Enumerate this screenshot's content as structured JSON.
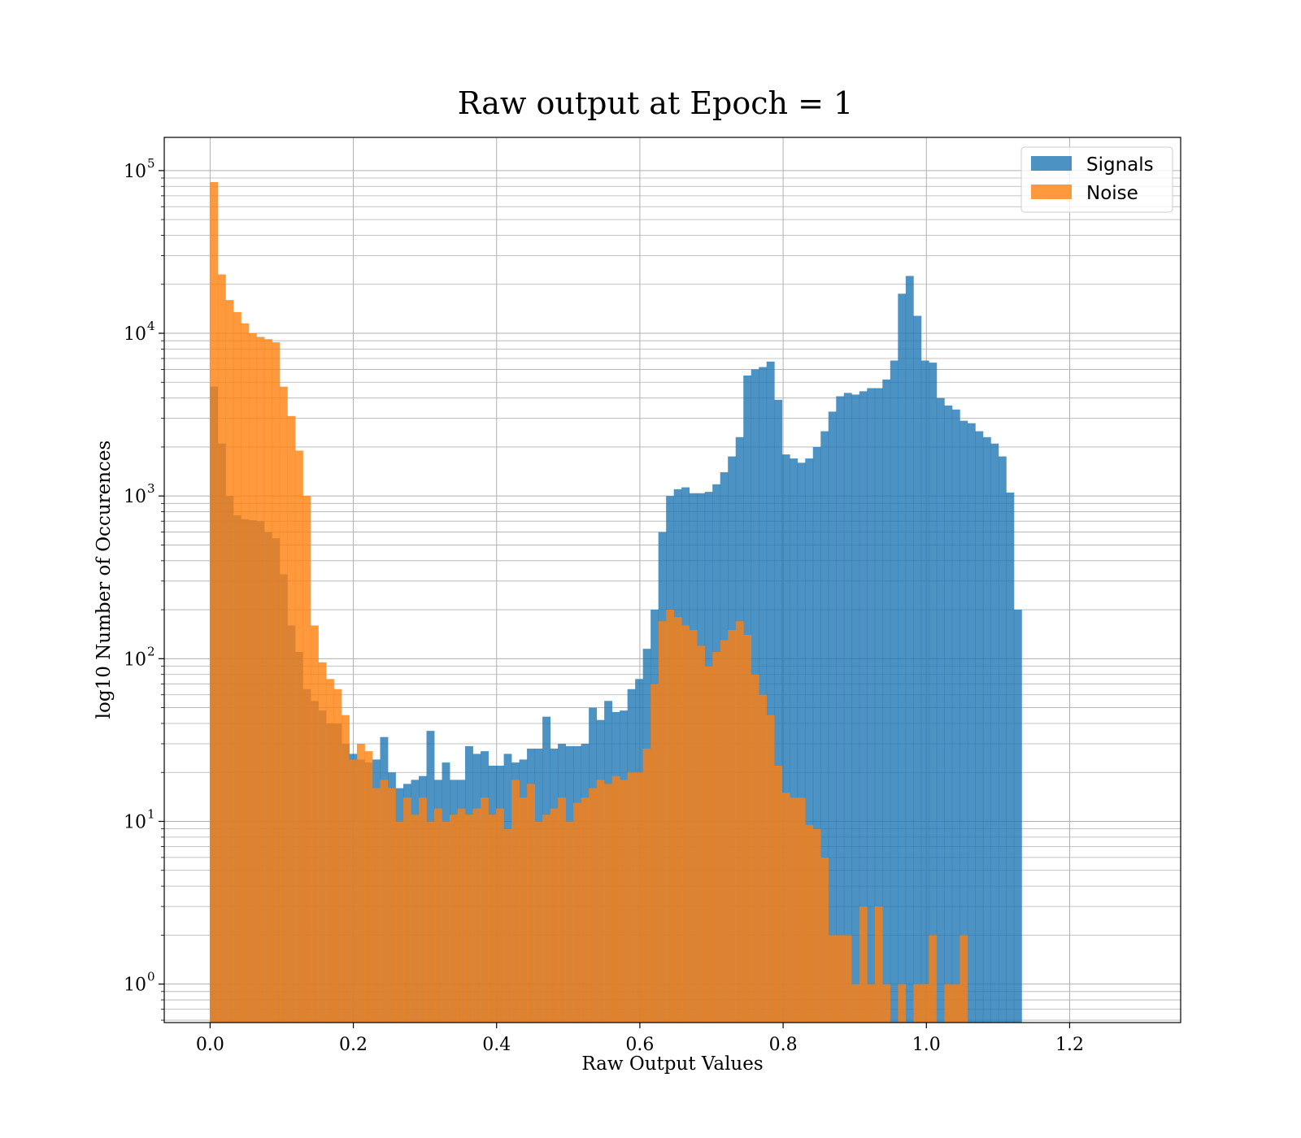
{
  "chart_data": {
    "type": "bar",
    "title": "Raw output at Epoch = 1",
    "xlabel": "Raw Output Values",
    "ylabel": "log10 Number of Occurences",
    "yscale": "log",
    "xlim": [
      -0.064,
      1.355
    ],
    "ylim": [
      0.58,
      160000
    ],
    "xticks": [
      0.0,
      0.2,
      0.4,
      0.6,
      0.8,
      1.0,
      1.2
    ],
    "xtick_labels": [
      "0.0",
      "0.2",
      "0.4",
      "0.6",
      "0.8",
      "1.0",
      "1.2"
    ],
    "yticks": [
      1,
      10,
      100,
      1000,
      10000,
      100000
    ],
    "ytick_labels": [
      {
        "base": "10",
        "exp": "0"
      },
      {
        "base": "10",
        "exp": "1"
      },
      {
        "base": "10",
        "exp": "2"
      },
      {
        "base": "10",
        "exp": "3"
      },
      {
        "base": "10",
        "exp": "4"
      },
      {
        "base": "10",
        "exp": "5"
      }
    ],
    "grid": true,
    "legend_position": "top-right",
    "bin_start": 0.0,
    "bin_width": 0.01079,
    "series": [
      {
        "name": "Signals",
        "color": "#1f77b4",
        "opacity": 0.8,
        "values": [
          4700,
          2100,
          1000,
          760,
          720,
          710,
          700,
          600,
          550,
          330,
          160,
          110,
          65,
          55,
          48,
          40,
          40,
          30,
          26,
          24,
          23,
          24,
          33,
          20,
          16,
          17,
          18,
          19,
          36,
          18,
          23,
          18,
          18,
          29,
          26,
          27,
          22,
          22,
          26,
          23,
          24,
          28,
          28,
          44,
          28,
          30,
          29,
          29,
          30,
          50,
          42,
          55,
          47,
          48,
          65,
          75,
          115,
          200,
          600,
          1000,
          1100,
          1130,
          1040,
          1040,
          1060,
          1180,
          1400,
          1750,
          2300,
          5500,
          6000,
          6200,
          6700,
          3900,
          1800,
          1700,
          1600,
          1700,
          2000,
          2500,
          3300,
          4100,
          4300,
          4200,
          4400,
          4600,
          4600,
          5200,
          6800,
          17500,
          22500,
          12800,
          6800,
          6600,
          4000,
          3600,
          3400,
          2900,
          2800,
          2500,
          2300,
          2100,
          1750,
          1050,
          200
        ]
      },
      {
        "name": "Noise",
        "color": "#ff7f0e",
        "opacity": 0.8,
        "values": [
          85000,
          23000,
          16000,
          13500,
          11500,
          10000,
          9500,
          9200,
          8800,
          4700,
          3100,
          1900,
          1000,
          160,
          95,
          75,
          65,
          45,
          24,
          30,
          27,
          16,
          18,
          16,
          10,
          14,
          11,
          14,
          10,
          12,
          10,
          11,
          12,
          11,
          12,
          14,
          11,
          12,
          9,
          18,
          14,
          17,
          10,
          11,
          12,
          14,
          10,
          13,
          14,
          16,
          18,
          17,
          19,
          18,
          20,
          20,
          28,
          70,
          170,
          200,
          180,
          160,
          150,
          120,
          90,
          110,
          130,
          150,
          170,
          140,
          80,
          60,
          45,
          22,
          15,
          14,
          14,
          9.5,
          9,
          6,
          2,
          2,
          2,
          1,
          3,
          1,
          3,
          1,
          0.35,
          1,
          0.35,
          1,
          1,
          2,
          0.35,
          1,
          1,
          2,
          0.35,
          0.35,
          0.35,
          0.35,
          0.35,
          0.35,
          0.35
        ]
      }
    ]
  }
}
